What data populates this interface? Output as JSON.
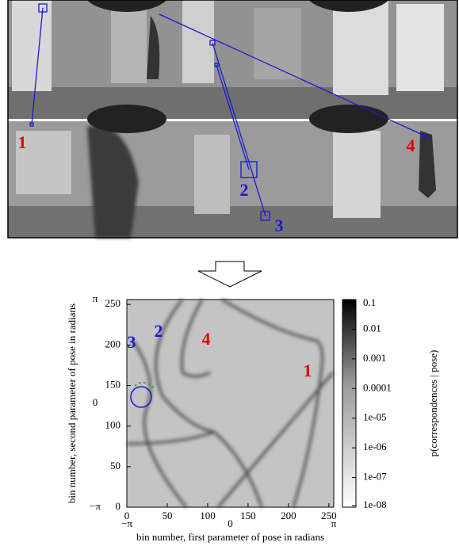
{
  "image_labels": [
    {
      "text": "1",
      "color": "#e00000"
    },
    {
      "text": "2",
      "color": "#1a1ad0"
    },
    {
      "text": "3",
      "color": "#1a1ad0"
    },
    {
      "text": "4",
      "color": "#e00000"
    }
  ],
  "chart_data": {
    "type": "heatmap",
    "xlabel": "bin number, first parameter of pose in radians",
    "ylabel": "bin number, second parameter of pose in radians",
    "xlim": [
      0,
      256
    ],
    "ylim": [
      0,
      256
    ],
    "xticks": [
      0,
      50,
      100,
      150,
      200,
      250
    ],
    "yticks": [
      0,
      50,
      100,
      150,
      200,
      250
    ],
    "x2lim": [
      -3.14159,
      3.14159
    ],
    "x2ticks": [
      {
        "value": -3.14159,
        "label": "−π"
      },
      0,
      {
        "value": 3.14159,
        "label": "π"
      }
    ],
    "y2lim": [
      -3.14159,
      3.14159
    ],
    "y2ticks": [
      {
        "value": -3.14159,
        "label": "−π"
      },
      0,
      {
        "value": 3.14159,
        "label": "π"
      }
    ],
    "colorbar": {
      "label": "p(correspondences | pose)",
      "log": true,
      "lim": [
        1e-08,
        0.1
      ],
      "ticks": [
        {
          "value": 0.1,
          "label": "0.1"
        },
        {
          "value": 0.01,
          "label": "0.01"
        },
        {
          "value": 0.001,
          "label": "0.001"
        },
        {
          "value": 0.0001,
          "label": "0.0001"
        },
        {
          "value": 1e-05,
          "label": "1e-05"
        },
        {
          "value": 1e-06,
          "label": "1e-06"
        },
        {
          "value": 1e-07,
          "label": "1e-07"
        },
        {
          "value": 1e-08,
          "label": "1e-08"
        }
      ]
    },
    "annotations": [
      {
        "text": "3",
        "color": "#1a1ad0"
      },
      {
        "text": "2",
        "color": "#1a1ad0"
      },
      {
        "text": "4",
        "color": "#e00000"
      },
      {
        "text": "1",
        "color": "#e00000"
      }
    ]
  }
}
